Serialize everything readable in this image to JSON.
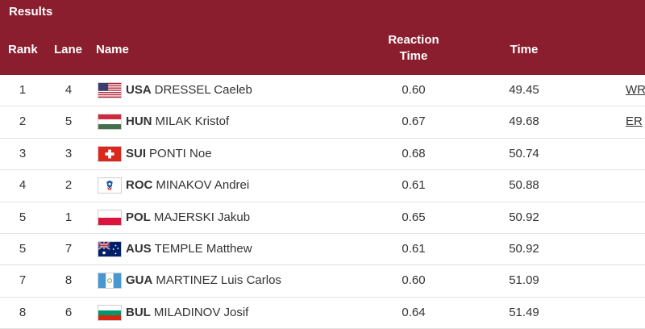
{
  "header": {
    "title": "Results",
    "columns": {
      "rank": "Rank",
      "lane": "Lane",
      "name": "Name",
      "reaction_line1": "Reaction",
      "reaction_line2": "Time",
      "time": "Time"
    }
  },
  "rows": [
    {
      "rank": "1",
      "lane": "4",
      "noc": "USA",
      "name": "DRESSEL Caeleb",
      "reaction": "0.60",
      "time": "49.45",
      "record": "WR",
      "flag": "usa-flag-icon"
    },
    {
      "rank": "2",
      "lane": "5",
      "noc": "HUN",
      "name": "MILAK Kristof",
      "reaction": "0.67",
      "time": "49.68",
      "record": "ER",
      "flag": "hungary-flag-icon"
    },
    {
      "rank": "3",
      "lane": "3",
      "noc": "SUI",
      "name": "PONTI Noe",
      "reaction": "0.68",
      "time": "50.74",
      "record": "",
      "flag": "switzerland-flag-icon"
    },
    {
      "rank": "4",
      "lane": "2",
      "noc": "ROC",
      "name": "MINAKOV Andrei",
      "reaction": "0.61",
      "time": "50.88",
      "record": "",
      "flag": "roc-flag-icon"
    },
    {
      "rank": "5",
      "lane": "1",
      "noc": "POL",
      "name": "MAJERSKI Jakub",
      "reaction": "0.65",
      "time": "50.92",
      "record": "",
      "flag": "poland-flag-icon"
    },
    {
      "rank": "5",
      "lane": "7",
      "noc": "AUS",
      "name": "TEMPLE Matthew",
      "reaction": "0.61",
      "time": "50.92",
      "record": "",
      "flag": "australia-flag-icon"
    },
    {
      "rank": "7",
      "lane": "8",
      "noc": "GUA",
      "name": "MARTINEZ Luis Carlos",
      "reaction": "0.60",
      "time": "51.09",
      "record": "",
      "flag": "guatemala-flag-icon"
    },
    {
      "rank": "8",
      "lane": "6",
      "noc": "BUL",
      "name": "MILADINOV Josif",
      "reaction": "0.64",
      "time": "51.49",
      "record": "",
      "flag": "bulgaria-flag-icon"
    }
  ],
  "colors": {
    "header_bg": "#8b1e2e",
    "header_text": "#ffffff",
    "row_divider": "#e2e2e2",
    "text": "#333333"
  }
}
